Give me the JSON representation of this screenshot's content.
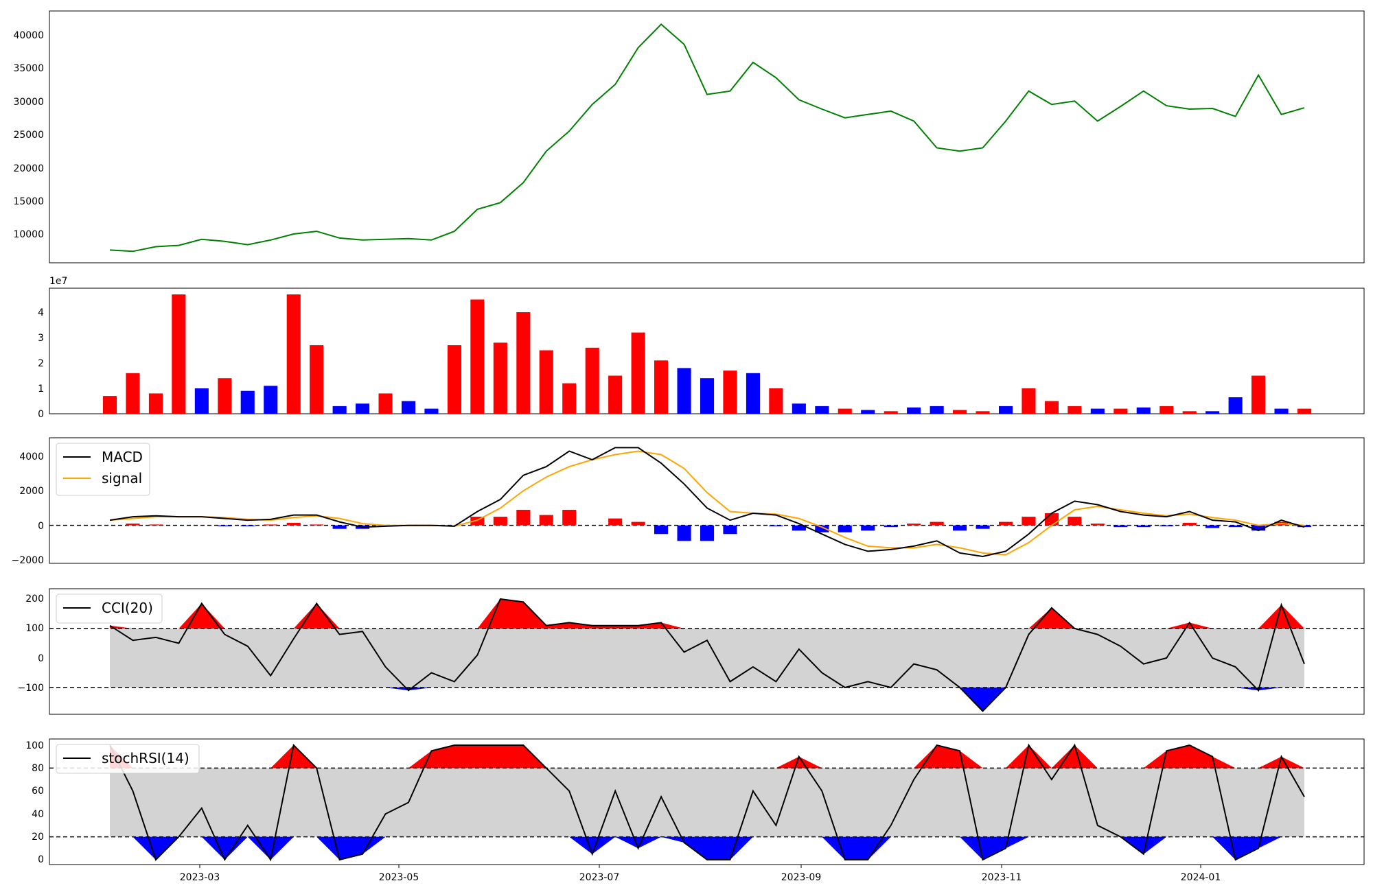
{
  "chart_data": [
    {
      "type": "line",
      "panel": "price",
      "x": [
        "2023-02-01",
        "2023-02-08",
        "2023-02-15",
        "2023-02-22",
        "2023-03-01",
        "2023-03-08",
        "2023-03-15",
        "2023-03-22",
        "2023-03-29",
        "2023-04-05",
        "2023-04-12",
        "2023-04-19",
        "2023-04-26",
        "2023-05-03",
        "2023-05-10",
        "2023-05-17",
        "2023-05-24",
        "2023-05-31",
        "2023-06-07",
        "2023-06-14",
        "2023-06-21",
        "2023-06-28",
        "2023-07-05",
        "2023-07-12",
        "2023-07-19",
        "2023-07-26",
        "2023-08-02",
        "2023-08-09",
        "2023-08-16",
        "2023-08-23",
        "2023-08-30",
        "2023-09-06",
        "2023-09-13",
        "2023-09-20",
        "2023-09-27",
        "2023-10-04",
        "2023-10-11",
        "2023-10-18",
        "2023-10-25",
        "2023-11-01",
        "2023-11-08",
        "2023-11-15",
        "2023-11-22",
        "2023-11-29",
        "2023-12-06",
        "2023-12-13",
        "2023-12-20",
        "2023-12-27",
        "2024-01-03",
        "2024-01-10",
        "2024-01-17",
        "2024-01-24",
        "2024-01-31"
      ],
      "series": [
        {
          "color": "#008000",
          "values": [
            7700,
            7500,
            8200,
            8400,
            9300,
            9000,
            8500,
            9200,
            10100,
            10500,
            9500,
            9200,
            9300,
            9400,
            9200,
            10500,
            13800,
            14800,
            17800,
            22500,
            25500,
            29500,
            32500,
            38000,
            41500,
            38500,
            31000,
            31500,
            35800,
            33500,
            30200,
            28800,
            27500,
            28000,
            28500,
            27000,
            23000,
            22500,
            23000,
            27000,
            31500,
            29500,
            30000,
            27000,
            29200,
            31500,
            29300,
            28800,
            28900,
            27700,
            33900,
            28000,
            29000
          ]
        }
      ]
    },
    {
      "type": "bar",
      "panel": "volume",
      "scale_label": "1e7",
      "ylim": [
        0,
        4.9
      ],
      "x": [
        "2023-02-01",
        "2023-02-08",
        "2023-02-15",
        "2023-02-22",
        "2023-03-01",
        "2023-03-08",
        "2023-03-15",
        "2023-03-22",
        "2023-03-29",
        "2023-04-05",
        "2023-04-12",
        "2023-04-19",
        "2023-04-26",
        "2023-05-03",
        "2023-05-10",
        "2023-05-17",
        "2023-05-24",
        "2023-05-31",
        "2023-06-07",
        "2023-06-14",
        "2023-06-21",
        "2023-06-28",
        "2023-07-05",
        "2023-07-12",
        "2023-07-19",
        "2023-07-26",
        "2023-08-02",
        "2023-08-09",
        "2023-08-16",
        "2023-08-23",
        "2023-08-30",
        "2023-09-06",
        "2023-09-13",
        "2023-09-20",
        "2023-09-27",
        "2023-10-04",
        "2023-10-11",
        "2023-10-18",
        "2023-10-25",
        "2023-11-01",
        "2023-11-08",
        "2023-11-15",
        "2023-11-22",
        "2023-11-29",
        "2023-12-06",
        "2023-12-13",
        "2023-12-20",
        "2023-12-27",
        "2024-01-03",
        "2024-01-10",
        "2024-01-17",
        "2024-01-24",
        "2024-01-31"
      ],
      "values": [
        0.7,
        1.6,
        0.8,
        4.7,
        1.0,
        1.4,
        0.9,
        1.1,
        4.7,
        2.7,
        0.3,
        0.4,
        0.8,
        0.5,
        0.2,
        2.7,
        4.5,
        2.8,
        4.0,
        2.5,
        1.2,
        2.6,
        1.5,
        3.2,
        2.1,
        1.8,
        1.4,
        1.7,
        1.6,
        1.0,
        0.4,
        0.3,
        0.2,
        0.15,
        0.1,
        0.25,
        0.3,
        0.15,
        0.1,
        0.3,
        1.0,
        0.5,
        0.3,
        0.2,
        0.2,
        0.25,
        0.3,
        0.1,
        0.1,
        0.65,
        1.5,
        0.2,
        0.2
      ],
      "colors": [
        "#ff0000",
        "#ff0000",
        "#ff0000",
        "#ff0000",
        "#0000ff",
        "#ff0000",
        "#0000ff",
        "#0000ff",
        "#ff0000",
        "#ff0000",
        "#0000ff",
        "#0000ff",
        "#ff0000",
        "#0000ff",
        "#0000ff",
        "#ff0000",
        "#ff0000",
        "#ff0000",
        "#ff0000",
        "#ff0000",
        "#ff0000",
        "#ff0000",
        "#ff0000",
        "#ff0000",
        "#ff0000",
        "#0000ff",
        "#0000ff",
        "#ff0000",
        "#0000ff",
        "#ff0000",
        "#0000ff",
        "#0000ff",
        "#ff0000",
        "#0000ff",
        "#ff0000",
        "#0000ff",
        "#0000ff",
        "#ff0000",
        "#ff0000",
        "#0000ff",
        "#ff0000",
        "#ff0000",
        "#ff0000",
        "#0000ff",
        "#ff0000",
        "#0000ff",
        "#ff0000",
        "#ff0000",
        "#0000ff",
        "#0000ff",
        "#ff0000",
        "#0000ff",
        "#ff0000"
      ]
    },
    {
      "type": "line",
      "panel": "macd",
      "ylim": [
        -2300,
        5000
      ],
      "reference_line": 0,
      "legend": [
        "MACD",
        "signal"
      ],
      "series": [
        {
          "name": "MACD",
          "color": "#000000",
          "values": [
            300,
            500,
            550,
            500,
            500,
            400,
            300,
            350,
            600,
            600,
            200,
            -100,
            -50,
            0,
            0,
            -50,
            800,
            1500,
            2900,
            3400,
            4300,
            3800,
            4500,
            4500,
            3600,
            2400,
            1000,
            300,
            700,
            600,
            100,
            -500,
            -1100,
            -1500,
            -1400,
            -1200,
            -900,
            -1600,
            -1800,
            -1500,
            -500,
            700,
            1400,
            1200,
            800,
            600,
            500,
            800,
            300,
            200,
            -300,
            300,
            -100
          ]
        },
        {
          "name": "signal",
          "color": "#ffa500",
          "values": [
            300,
            400,
            500,
            500,
            500,
            450,
            350,
            300,
            450,
            550,
            400,
            100,
            0,
            0,
            0,
            -50,
            300,
            1000,
            2000,
            2800,
            3400,
            3800,
            4100,
            4300,
            4100,
            3300,
            1900,
            800,
            700,
            650,
            400,
            -100,
            -700,
            -1200,
            -1300,
            -1300,
            -1100,
            -1300,
            -1600,
            -1700,
            -1000,
            0,
            900,
            1100,
            900,
            700,
            550,
            650,
            450,
            300,
            0,
            100,
            0
          ]
        }
      ],
      "histogram": [
        0,
        100,
        50,
        0,
        0,
        -50,
        -50,
        50,
        150,
        50,
        -200,
        -200,
        -50,
        0,
        0,
        0,
        500,
        500,
        900,
        600,
        900,
        0,
        400,
        200,
        -500,
        -900,
        -900,
        -500,
        0,
        -50,
        -300,
        -400,
        -400,
        -300,
        -100,
        100,
        200,
        -300,
        -200,
        200,
        500,
        700,
        500,
        100,
        -100,
        -100,
        -50,
        150,
        -150,
        -100,
        -300,
        200,
        -100
      ]
    },
    {
      "type": "line",
      "panel": "cci",
      "ylim": [
        -190,
        225
      ],
      "thresholds": [
        100,
        -100
      ],
      "legend": [
        "CCI(20)"
      ],
      "series": [
        {
          "name": "CCI(20)",
          "color": "#000000",
          "values": [
            110,
            60,
            70,
            50,
            185,
            80,
            40,
            -60,
            65,
            185,
            80,
            90,
            -30,
            -110,
            -50,
            -80,
            10,
            200,
            190,
            110,
            120,
            110,
            110,
            110,
            120,
            20,
            60,
            -80,
            -30,
            -80,
            30,
            -50,
            -100,
            -80,
            -100,
            -20,
            -40,
            -100,
            -180,
            -100,
            80,
            170,
            100,
            80,
            40,
            -20,
            0,
            120,
            0,
            -30,
            -110,
            180,
            -20
          ]
        }
      ]
    },
    {
      "type": "line",
      "panel": "stochrsi",
      "ylim": [
        -3,
        105
      ],
      "thresholds": [
        80,
        20
      ],
      "legend": [
        "stochRSI(14)"
      ],
      "series": [
        {
          "name": "stochRSI(14)",
          "color": "#000000",
          "values": [
            100,
            60,
            0,
            20,
            45,
            0,
            30,
            0,
            100,
            80,
            0,
            5,
            40,
            50,
            95,
            100,
            100,
            100,
            100,
            80,
            60,
            5,
            60,
            10,
            55,
            15,
            0,
            0,
            60,
            30,
            90,
            60,
            0,
            0,
            30,
            70,
            100,
            95,
            0,
            10,
            100,
            70,
            100,
            30,
            20,
            5,
            95,
            100,
            90,
            0,
            10,
            90,
            55
          ]
        }
      ]
    },
    {
      "type": "axis",
      "panel": "shared-x",
      "tick_labels": [
        "2023-03",
        "2023-05",
        "2023-07",
        "2023-09",
        "2023-11",
        "2024-01"
      ]
    }
  ],
  "axes_text": {
    "price_ticks": [
      "10000",
      "15000",
      "20000",
      "25000",
      "30000",
      "35000",
      "40000"
    ],
    "volume_ticks": [
      "0",
      "1",
      "2",
      "3",
      "4"
    ],
    "volume_scale": "1e7",
    "macd_ticks": [
      "−2000",
      "0",
      "2000",
      "4000"
    ],
    "cci_ticks": [
      "−100",
      "0",
      "100",
      "200"
    ],
    "stoch_ticks": [
      "0",
      "20",
      "40",
      "60",
      "80",
      "100"
    ],
    "date_ticks": [
      "2023-03",
      "2023-05",
      "2023-07",
      "2023-09",
      "2023-11",
      "2024-01"
    ]
  },
  "legends": {
    "macd": "MACD",
    "signal": "signal",
    "cci": "CCI(20)",
    "stoch": "stochRSI(14)"
  }
}
